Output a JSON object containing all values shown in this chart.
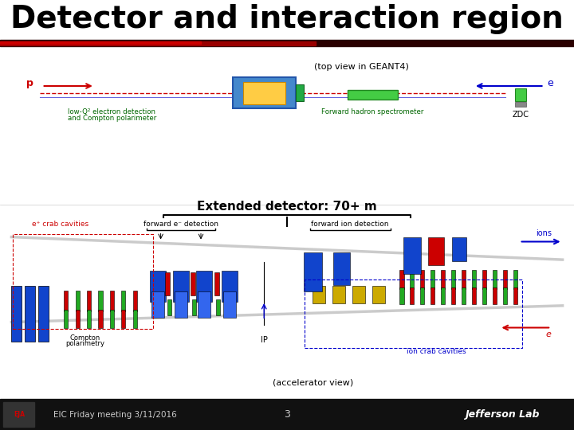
{
  "title": "Detector and interaction region",
  "title_fontsize": 28,
  "title_fontweight": "bold",
  "title_color": "#000000",
  "bg_color": "#ffffff",
  "footer_bg": "#111111",
  "footer_text": "EIC Friday meeting 3/11/2016",
  "footer_page": "3",
  "footer_lab": "Jefferson Lab",
  "top_section_label": "(top view in GEANT4)",
  "p_label": "p",
  "e_label": "e",
  "low_q2_line1": "low-Q² electron detection",
  "low_q2_line2": "and Compton polarimeter",
  "fwd_hadron_text": "Forward hadron spectrometer",
  "zdc_text": "ZDC",
  "extended_text": "Extended detector: 70+ m",
  "accel_text": "(accelerator view)",
  "ecrab_text": "e⁺ crab cavities",
  "compton_line1": "Compton",
  "compton_line2": "polarimetry",
  "fwd_e_text": "forward e⁻ detection",
  "fwd_ion_text": "forward ion detection",
  "ions_text": "ions",
  "ip_text": "IP",
  "ion_crab_text": "ion crab cavities",
  "e_bottom_text": "e",
  "red": "#cc0000",
  "blue": "#0000cc",
  "green": "#22aa22",
  "dark_blue": "#1144cc",
  "gold": "#ccaa00",
  "gray": "#aaaaaa"
}
